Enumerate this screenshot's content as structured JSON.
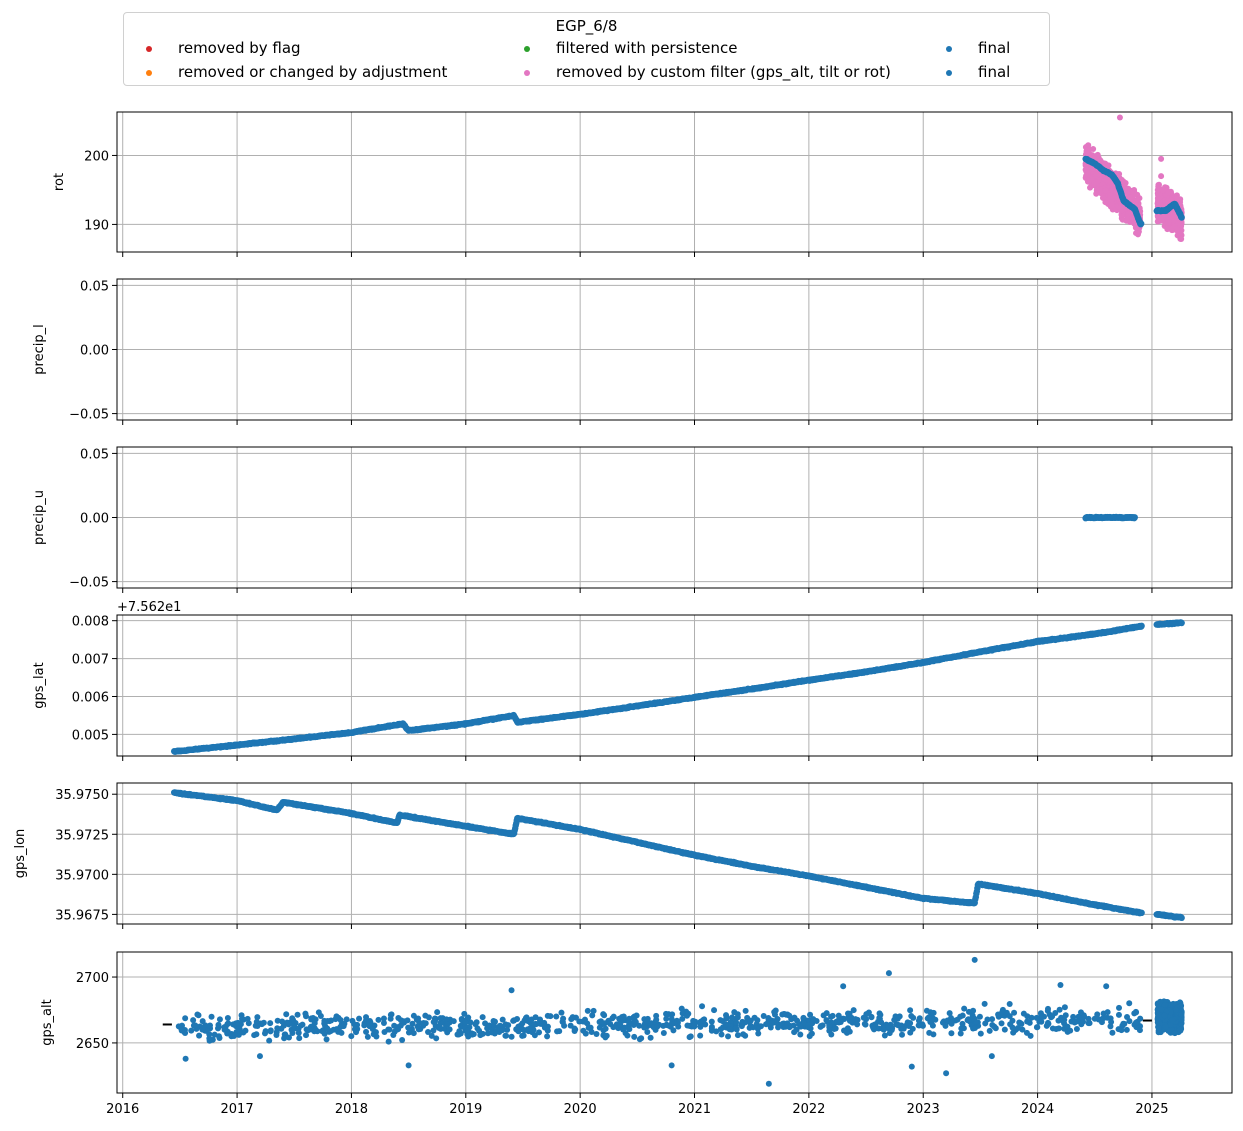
{
  "legend": {
    "title": "EGP_6/8",
    "entries": [
      {
        "label": "removed by flag",
        "color": "#d62728"
      },
      {
        "label": "removed or changed by adjustment",
        "color": "#ff7f0e"
      },
      {
        "label": "filtered with persistence",
        "color": "#2ca02c"
      },
      {
        "label": "removed by custom filter (gps_alt, tilt or rot)",
        "color": "#e377c2"
      },
      {
        "label": "final",
        "color": "#1f77b4"
      },
      {
        "label": "final",
        "color": "#1f77b4"
      }
    ]
  },
  "chart_data": [
    {
      "type": "scatter",
      "ylabel": "rot",
      "xlim": [
        2015.95,
        2025.7
      ],
      "ylim": [
        186,
        206.3
      ],
      "yticks": [
        190,
        200
      ],
      "ytick_labels": [
        "190",
        "200"
      ],
      "show_xtick_labels": false,
      "offset_label": "",
      "series": [
        {
          "name": "removed by custom filter (gps_alt, tilt or rot)",
          "color": "#e377c2",
          "bands": [
            {
              "x": [
                2024.42,
                2024.9
              ],
              "center": [
                199,
                191
              ],
              "spread": 3.5
            },
            {
              "x": [
                2025.05,
                2025.26
              ],
              "center": [
                193,
                191
              ],
              "spread": 3.5
            }
          ],
          "outliers": [
            [
              2024.72,
              205.5
            ],
            [
              2025.08,
              199.5
            ],
            [
              2025.08,
              197
            ]
          ]
        },
        {
          "name": "final",
          "color": "#1f77b4",
          "x": [
            2024.42,
            2024.5,
            2024.58,
            2024.65,
            2024.7,
            2024.75,
            2024.8,
            2024.85,
            2024.9,
            2025.05,
            2025.12,
            2025.2,
            2025.26
          ],
          "y": [
            199.5,
            198.8,
            197.8,
            197.2,
            196,
            193.5,
            192.8,
            192.2,
            190,
            192,
            192,
            193,
            191
          ]
        }
      ]
    },
    {
      "type": "scatter",
      "ylabel": "precip_l",
      "xlim": [
        2015.95,
        2025.7
      ],
      "ylim": [
        -0.055,
        0.055
      ],
      "yticks": [
        -0.05,
        0.0,
        0.05
      ],
      "ytick_labels": [
        "−0.05",
        "0.00",
        "0.05"
      ],
      "show_xtick_labels": false,
      "offset_label": "",
      "series": []
    },
    {
      "type": "scatter",
      "ylabel": "precip_u",
      "xlim": [
        2015.95,
        2025.7
      ],
      "ylim": [
        -0.055,
        0.055
      ],
      "yticks": [
        -0.05,
        0.0,
        0.05
      ],
      "ytick_labels": [
        "−0.05",
        "0.00",
        "0.05"
      ],
      "show_xtick_labels": false,
      "offset_label": "",
      "series": [
        {
          "name": "final",
          "color": "#1f77b4",
          "x": [
            2024.42,
            2024.85
          ],
          "y": [
            0.0,
            0.0
          ]
        }
      ]
    },
    {
      "type": "scatter",
      "ylabel": "gps_lat",
      "xlim": [
        2015.95,
        2025.7
      ],
      "ylim": [
        0.00443,
        0.00815
      ],
      "yticks": [
        0.005,
        0.006,
        0.007,
        0.008
      ],
      "ytick_labels": [
        "0.005",
        "0.006",
        "0.007",
        "0.008"
      ],
      "show_xtick_labels": false,
      "offset_label": "+7.562e1",
      "series": [
        {
          "name": "final",
          "color": "#1f77b4",
          "x": [
            2016.45,
            2017.0,
            2017.5,
            2018.0,
            2018.45,
            2018.5,
            2019.0,
            2019.42,
            2019.45,
            2020.0,
            2020.5,
            2021.0,
            2021.5,
            2022.0,
            2022.5,
            2023.0,
            2023.5,
            2024.0,
            2024.5,
            2024.9,
            2025.05,
            2025.26
          ],
          "y": [
            0.00455,
            0.00472,
            0.00488,
            0.00505,
            0.00528,
            0.0051,
            0.00528,
            0.0055,
            0.00532,
            0.00553,
            0.00575,
            0.00598,
            0.0062,
            0.00643,
            0.00665,
            0.0069,
            0.00718,
            0.00745,
            0.00765,
            0.00785,
            0.0079,
            0.00795
          ]
        }
      ]
    },
    {
      "type": "scatter",
      "ylabel": "gps_lon",
      "xlim": [
        2015.95,
        2025.7
      ],
      "ylim": [
        35.9669,
        35.9757
      ],
      "yticks": [
        35.9675,
        35.97,
        35.9725,
        35.975
      ],
      "ytick_labels": [
        "35.9675",
        "35.9700",
        "35.9725",
        "35.9750"
      ],
      "show_xtick_labels": false,
      "offset_label": "",
      "series": [
        {
          "name": "final",
          "color": "#1f77b4",
          "x": [
            2016.45,
            2017.0,
            2017.35,
            2017.4,
            2018.0,
            2018.4,
            2018.42,
            2019.0,
            2019.42,
            2019.45,
            2020.0,
            2020.5,
            2021.0,
            2021.5,
            2022.0,
            2022.5,
            2023.0,
            2023.45,
            2023.48,
            2024.0,
            2024.5,
            2024.9,
            2025.05,
            2025.26
          ],
          "y": [
            35.9751,
            35.9746,
            35.974,
            35.9745,
            35.9738,
            35.9732,
            35.9737,
            35.973,
            35.9725,
            35.9735,
            35.9728,
            35.972,
            35.9712,
            35.9705,
            35.9699,
            35.9692,
            35.9685,
            35.9682,
            35.9694,
            35.9688,
            35.9681,
            35.9676,
            35.9675,
            35.9673
          ]
        }
      ]
    },
    {
      "type": "scatter",
      "ylabel": "gps_alt",
      "xlim": [
        2015.95,
        2025.7
      ],
      "ylim": [
        2612,
        2719
      ],
      "yticks": [
        2650,
        2700
      ],
      "ytick_labels": [
        "2650",
        "2700"
      ],
      "show_xtick_labels": true,
      "offset_label": "",
      "series": [
        {
          "name": "final",
          "color": "#1f77b4",
          "bands": [
            {
              "x": [
                2016.45,
                2024.9
              ],
              "center": [
                2661,
                2668
              ],
              "spread": 14
            },
            {
              "x": [
                2025.05,
                2025.26
              ],
              "center": [
                2670,
                2670
              ],
              "spread": 14
            }
          ],
          "outliers": [
            [
              2016.55,
              2638
            ],
            [
              2017.2,
              2640
            ],
            [
              2018.5,
              2633
            ],
            [
              2019.4,
              2690
            ],
            [
              2020.8,
              2633
            ],
            [
              2021.65,
              2619
            ],
            [
              2022.3,
              2693
            ],
            [
              2022.7,
              2703
            ],
            [
              2022.9,
              2632
            ],
            [
              2023.2,
              2627
            ],
            [
              2023.45,
              2713
            ],
            [
              2023.6,
              2640
            ],
            [
              2024.2,
              2694
            ],
            [
              2024.6,
              2693
            ]
          ]
        },
        {
          "name": "black",
          "color": "#000000",
          "segments": [
            [
              2016.35,
              2016.43,
              2664
            ],
            [
              2024.92,
              2025.0,
              2667
            ]
          ]
        }
      ]
    }
  ],
  "xaxis": {
    "ticks": [
      2016,
      2017,
      2018,
      2019,
      2020,
      2021,
      2022,
      2023,
      2024,
      2025
    ],
    "tick_labels": [
      "2016",
      "2017",
      "2018",
      "2019",
      "2020",
      "2021",
      "2022",
      "2023",
      "2024",
      "2025"
    ]
  }
}
